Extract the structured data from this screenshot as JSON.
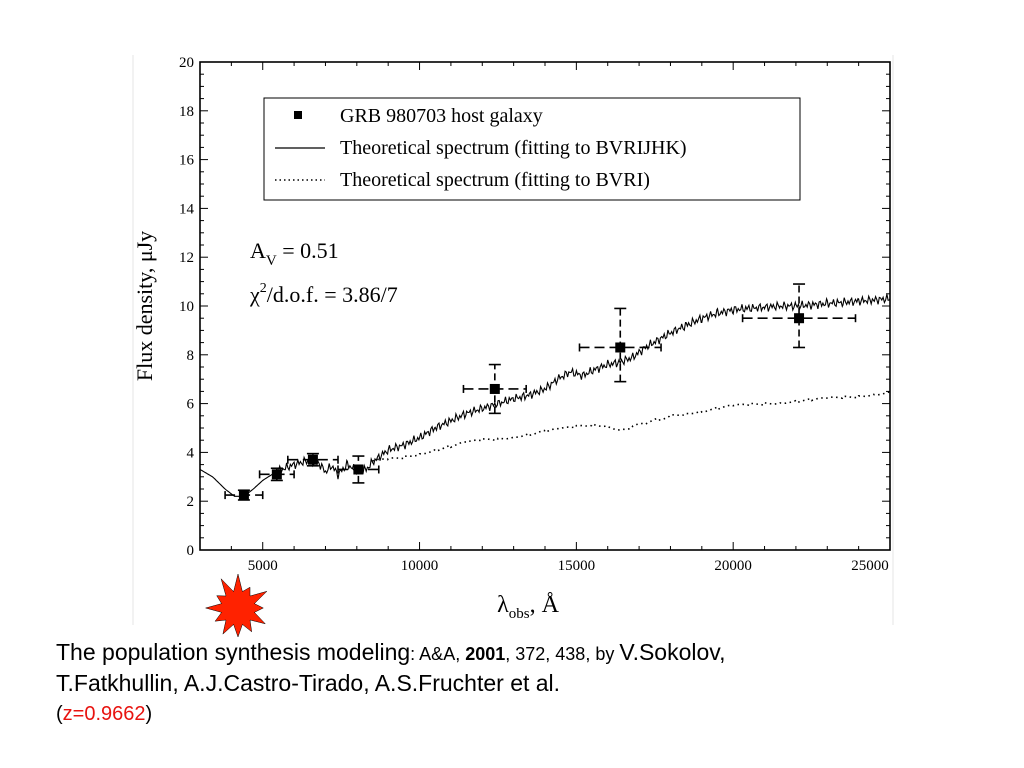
{
  "chart_data": {
    "type": "scatter",
    "title": "",
    "xlabel": "λ",
    "xlabel_sub": "obs",
    "xlabel_unit": ", Å",
    "ylabel": "Flux density, μJy",
    "xlim": [
      3000,
      25000
    ],
    "ylim": [
      0,
      20
    ],
    "x_ticks": [
      5000,
      10000,
      15000,
      20000,
      25000
    ],
    "y_ticks": [
      0,
      2,
      4,
      6,
      8,
      10,
      12,
      14,
      16,
      18,
      20
    ],
    "grid": false,
    "legend_position": "top-right",
    "legend": [
      {
        "label": "GRB 980703 host galaxy",
        "marker": "square"
      },
      {
        "label": "Theoretical spectrum (fitting to BVRIJHK)",
        "marker": "solid-line"
      },
      {
        "label": "Theoretical spectrum (fitting to BVRI)",
        "marker": "dotted-line"
      }
    ],
    "annotations": {
      "av_label": "A",
      "av_sub": "V",
      "av_value": " = 0.51",
      "chi_label": "χ",
      "chi_sup": "2",
      "chi_value": "/d.o.f. = 3.86/7"
    },
    "points": [
      {
        "x": 4400,
        "y": 2.25,
        "xerr": [
          3800,
          5000
        ],
        "yerr": [
          2.05,
          2.45
        ]
      },
      {
        "x": 5450,
        "y": 3.1,
        "xerr": [
          4900,
          6000
        ],
        "yerr": [
          2.85,
          3.35
        ]
      },
      {
        "x": 6600,
        "y": 3.7,
        "xerr": [
          5800,
          7400
        ],
        "yerr": [
          3.45,
          3.95
        ]
      },
      {
        "x": 8050,
        "y": 3.3,
        "xerr": [
          7400,
          8700
        ],
        "yerr": [
          2.75,
          3.85
        ]
      },
      {
        "x": 12400,
        "y": 6.6,
        "xerr": [
          11400,
          13400
        ],
        "yerr": [
          5.6,
          7.6
        ]
      },
      {
        "x": 16400,
        "y": 8.3,
        "xerr": [
          15100,
          17700
        ],
        "yerr": [
          6.9,
          9.9
        ]
      },
      {
        "x": 22100,
        "y": 9.5,
        "xerr": [
          20300,
          23900
        ],
        "yerr": [
          8.3,
          10.9
        ]
      }
    ],
    "series": [
      {
        "style": "solid",
        "x": [
          3000,
          3400,
          3800,
          4100,
          4400,
          4700,
          5000,
          5300,
          5600,
          6000,
          6400,
          6800,
          7000,
          7200,
          7400,
          7700,
          8000,
          8300,
          8500,
          8700,
          9000,
          9500,
          10000,
          10500,
          11000,
          11500,
          12000,
          12500,
          13000,
          13500,
          14000,
          14400,
          14800,
          15200,
          15600,
          16000,
          16400,
          16800,
          17200,
          17600,
          18000,
          18500,
          19000,
          19500,
          20000,
          20500,
          21000,
          21500,
          22000,
          22500,
          23000,
          23500,
          24000,
          24500,
          25000
        ],
        "y": [
          3.3,
          3.0,
          2.5,
          2.2,
          2.2,
          2.5,
          2.85,
          3.1,
          3.3,
          3.5,
          3.65,
          3.55,
          3.2,
          3.45,
          3.1,
          3.5,
          3.25,
          3.3,
          3.6,
          3.8,
          4.1,
          4.3,
          4.6,
          5.0,
          5.3,
          5.6,
          5.8,
          6.0,
          6.2,
          6.35,
          6.6,
          7.0,
          7.3,
          7.15,
          7.4,
          7.6,
          7.7,
          7.9,
          8.3,
          8.6,
          8.9,
          9.2,
          9.5,
          9.7,
          9.85,
          9.9,
          9.95,
          10.0,
          10.0,
          10.05,
          10.1,
          10.15,
          10.2,
          10.25,
          10.3
        ]
      },
      {
        "style": "dotted",
        "x": [
          8500,
          9000,
          9500,
          10000,
          10500,
          11000,
          11500,
          12000,
          12500,
          13000,
          13500,
          14000,
          14500,
          15000,
          15500,
          16000,
          16400,
          16800,
          17200,
          17600,
          18000,
          18500,
          19000,
          19500,
          20000,
          20500,
          21000,
          21500,
          22000,
          22500,
          23000,
          23500,
          24000,
          24500,
          25000
        ],
        "y": [
          3.65,
          3.7,
          3.8,
          3.95,
          4.1,
          4.25,
          4.4,
          4.5,
          4.55,
          4.65,
          4.75,
          4.85,
          4.95,
          5.05,
          5.15,
          5.1,
          4.9,
          5.05,
          5.2,
          5.35,
          5.5,
          5.6,
          5.7,
          5.8,
          5.9,
          5.95,
          6.0,
          6.05,
          6.1,
          6.15,
          6.2,
          6.25,
          6.3,
          6.4,
          6.45
        ]
      }
    ]
  },
  "caption": {
    "line1_a": "The population synthesis modeling",
    "line1_b": ": A&A, ",
    "line1_year": "2001",
    "line1_c": ", 372, 438, by ",
    "line1_d": "V.Sokolov,",
    "line2": "T.Fatkhullin, A.J.Castro-Tirado, A.S.Fruchter et al.",
    "line3_open": "(",
    "line3_z": "z=0.9662",
    "line3_close": ")"
  },
  "colors": {
    "starburst": "#ff2200",
    "caption_red": "#e8130f"
  },
  "icons": {
    "burst": "explosion-burst-icon"
  }
}
